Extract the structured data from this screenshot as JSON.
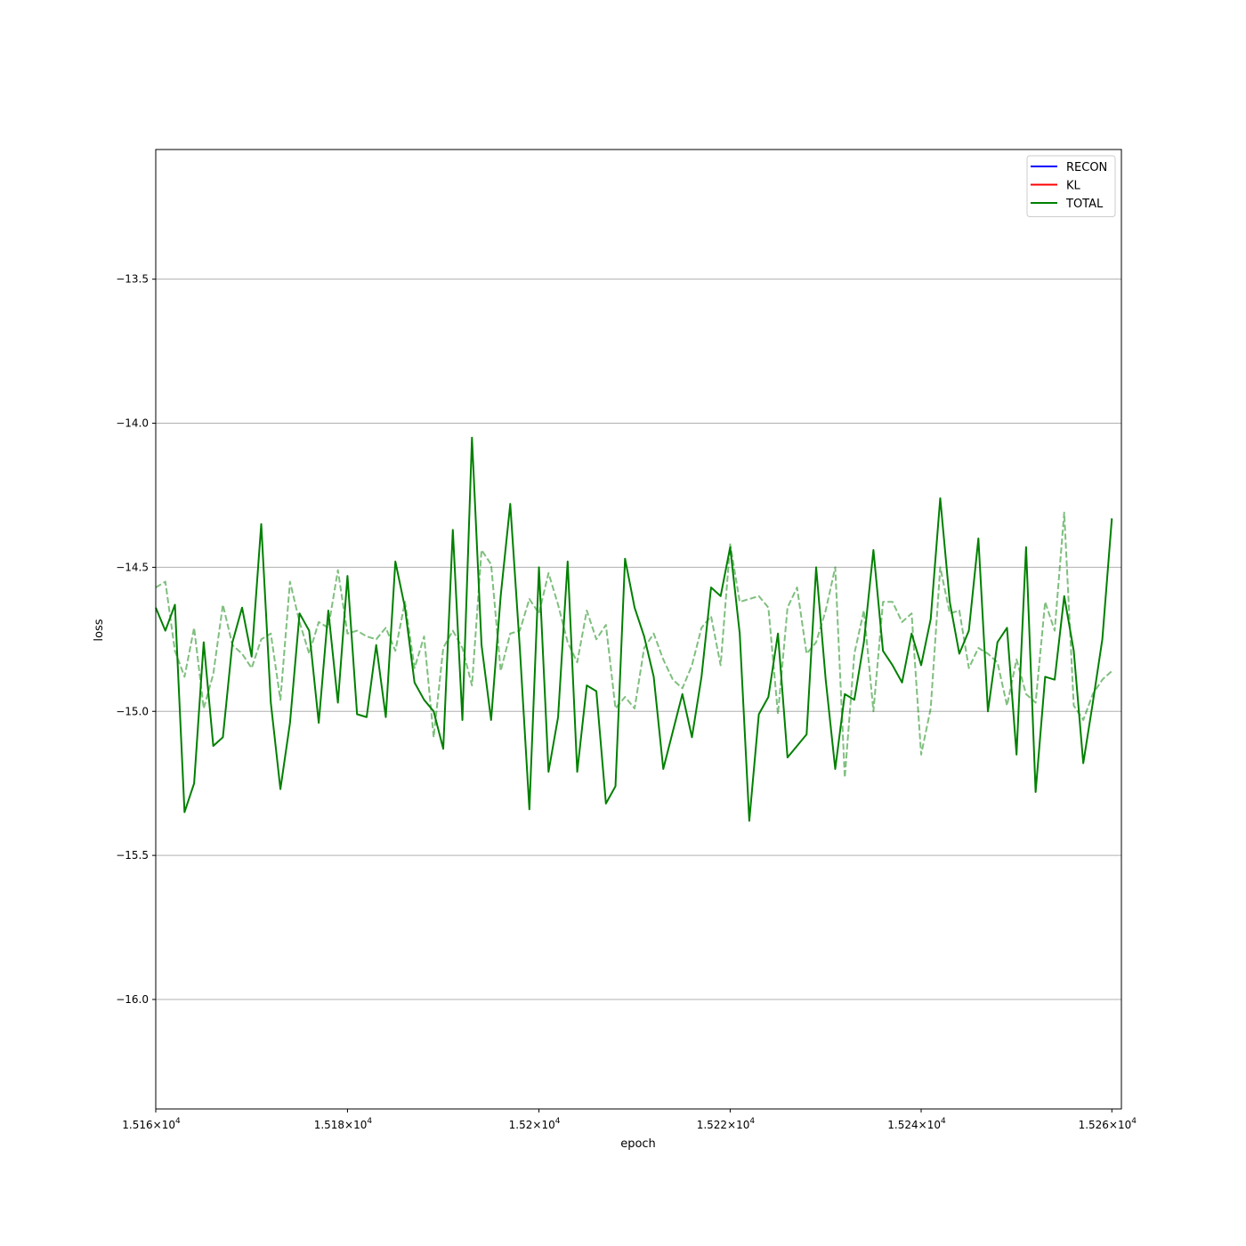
{
  "chart_data": {
    "type": "line",
    "xlabel": "epoch",
    "ylabel": "loss",
    "xlim": [
      15160,
      15261
    ],
    "ylim": [
      -16.38,
      -13.05
    ],
    "x_scale": "log",
    "grid": "y-major",
    "legend_position": "top-right",
    "x_ticks": [
      {
        "value": 15160,
        "mantissa": "1.516",
        "exponent": "4"
      },
      {
        "value": 15180,
        "mantissa": "1.518",
        "exponent": "4"
      },
      {
        "value": 15200,
        "mantissa": "1.52",
        "exponent": "4"
      },
      {
        "value": 15220,
        "mantissa": "1.522",
        "exponent": "4"
      },
      {
        "value": 15240,
        "mantissa": "1.524",
        "exponent": "4"
      },
      {
        "value": 15260,
        "mantissa": "1.526",
        "exponent": "4"
      }
    ],
    "x_tick_base": "10",
    "x_tick_times": "×",
    "y_ticks": [
      {
        "value": -13.5,
        "label": "−13.5"
      },
      {
        "value": -14.0,
        "label": "−14.0"
      },
      {
        "value": -14.5,
        "label": "−14.5"
      },
      {
        "value": -15.0,
        "label": "−15.0"
      },
      {
        "value": -15.5,
        "label": "−15.5"
      },
      {
        "value": -16.0,
        "label": "−16.0"
      }
    ],
    "legend": [
      {
        "name": "RECON",
        "color": "#0000ff"
      },
      {
        "name": "KL",
        "color": "#ff0000"
      },
      {
        "name": "TOTAL",
        "color": "#008000"
      }
    ],
    "x_start": 15160,
    "x_step": 1,
    "series": [
      {
        "name": "TOTAL",
        "color": "#008000",
        "style": "solid",
        "values": [
          -14.64,
          -14.72,
          -14.63,
          -15.35,
          -15.25,
          -14.76,
          -15.12,
          -15.09,
          -14.76,
          -14.64,
          -14.81,
          -14.35,
          -14.97,
          -15.27,
          -15.04,
          -14.66,
          -14.72,
          -15.04,
          -14.65,
          -14.97,
          -14.53,
          -15.01,
          -15.02,
          -14.77,
          -15.02,
          -14.48,
          -14.64,
          -14.9,
          -14.96,
          -15.0,
          -15.13,
          -14.37,
          -15.03,
          -14.05,
          -14.77,
          -15.03,
          -14.6,
          -14.28,
          -14.78,
          -15.34,
          -14.5,
          -15.21,
          -15.02,
          -14.48,
          -15.21,
          -14.91,
          -14.93,
          -15.32,
          -15.26,
          -14.47,
          -14.64,
          -14.74,
          -14.88,
          -15.2,
          -15.07,
          -14.94,
          -15.09,
          -14.88,
          -14.57,
          -14.6,
          -14.43,
          -14.73,
          -15.38,
          -15.01,
          -14.95,
          -14.73,
          -15.16,
          -15.12,
          -15.08,
          -14.5,
          -14.89,
          -15.2,
          -14.94,
          -14.96,
          -14.76,
          -14.44,
          -14.79,
          -14.84,
          -14.9,
          -14.73,
          -14.84,
          -14.68,
          -14.26,
          -14.62,
          -14.8,
          -14.72,
          -14.4,
          -15.0,
          -14.76,
          -14.71,
          -15.15,
          -14.43,
          -15.28,
          -14.88,
          -14.89,
          -14.6,
          -14.79,
          -15.18,
          -14.97,
          -14.75,
          -14.33
        ]
      },
      {
        "name": "",
        "color": "#008000",
        "style": "dashed",
        "opacity": 0.5,
        "values": [
          -14.57,
          -14.55,
          -14.79,
          -14.88,
          -14.71,
          -14.99,
          -14.87,
          -14.63,
          -14.77,
          -14.8,
          -14.85,
          -14.75,
          -14.73,
          -14.96,
          -14.55,
          -14.69,
          -14.8,
          -14.69,
          -14.71,
          -14.51,
          -14.73,
          -14.72,
          -14.74,
          -14.75,
          -14.71,
          -14.79,
          -14.62,
          -14.85,
          -14.74,
          -15.09,
          -14.78,
          -14.72,
          -14.78,
          -14.91,
          -14.44,
          -14.49,
          -14.86,
          -14.73,
          -14.72,
          -14.61,
          -14.66,
          -14.52,
          -14.63,
          -14.76,
          -14.83,
          -14.65,
          -14.75,
          -14.7,
          -14.99,
          -14.95,
          -14.99,
          -14.78,
          -14.73,
          -14.82,
          -14.89,
          -14.92,
          -14.84,
          -14.71,
          -14.67,
          -14.84,
          -14.42,
          -14.62,
          -14.61,
          -14.6,
          -14.64,
          -15.01,
          -14.64,
          -14.57,
          -14.8,
          -14.76,
          -14.65,
          -14.5,
          -15.23,
          -14.8,
          -14.65,
          -15.0,
          -14.62,
          -14.62,
          -14.69,
          -14.66,
          -15.15,
          -14.99,
          -14.5,
          -14.66,
          -14.65,
          -14.85,
          -14.78,
          -14.8,
          -14.83,
          -14.98,
          -14.82,
          -14.94,
          -14.97,
          -14.62,
          -14.72,
          -14.31,
          -14.98,
          -15.03,
          -14.94,
          -14.89,
          -14.86
        ]
      }
    ]
  }
}
